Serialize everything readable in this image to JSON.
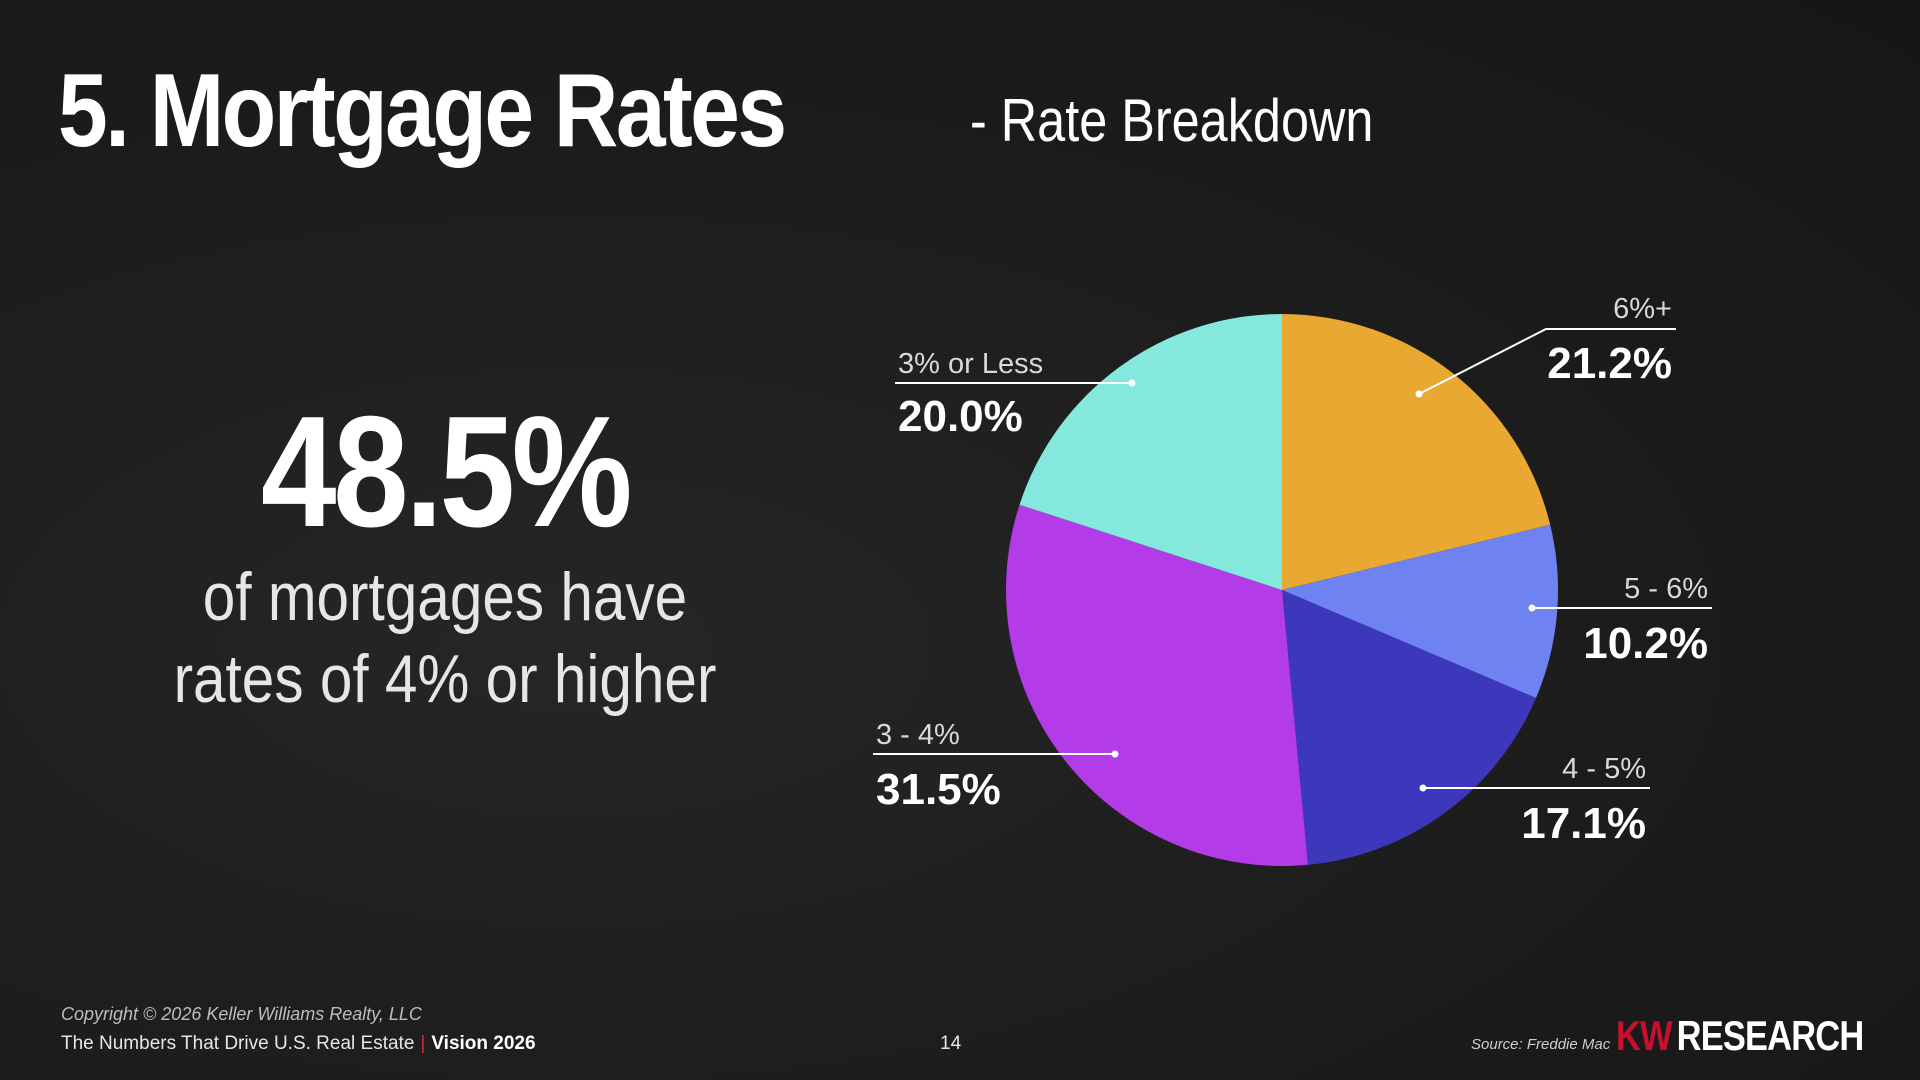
{
  "title": "5. Mortgage Rates",
  "subtitle": "- Rate Breakdown",
  "stat": {
    "value": "48.5%",
    "line1": "of mortgages have",
    "line2": "rates of 4% or higher"
  },
  "chart_data": {
    "type": "pie",
    "slices": [
      {
        "label": "6%+",
        "value": 21.2,
        "display": "21.2%",
        "color": "#E8A832"
      },
      {
        "label": "5 - 6%",
        "value": 10.2,
        "display": "10.2%",
        "color": "#6E82F2"
      },
      {
        "label": "4 - 5%",
        "value": 17.1,
        "display": "17.1%",
        "color": "#3D37BC"
      },
      {
        "label": "3 - 4%",
        "value": 31.5,
        "display": "31.5%",
        "color": "#B43CE8"
      },
      {
        "label": "3% or Less",
        "value": 20.0,
        "display": "20.0%",
        "color": "#84E8DC"
      }
    ],
    "start": "12 o'clock",
    "direction": "clockwise",
    "legend": "none"
  },
  "footer": {
    "copyright": "Copyright © 2026 Keller Williams Realty, LLC",
    "tagline": "The Numbers That Drive U.S. Real Estate",
    "separator": "|",
    "vision": "Vision 2026",
    "page_number": "14",
    "source": "Source: Freddie Mac",
    "brand_kw": "KW",
    "brand_research": "RESEARCH"
  },
  "colors": {
    "background": "#1c1c1c",
    "text": "#ffffff",
    "brand_red": "#c8102e"
  }
}
